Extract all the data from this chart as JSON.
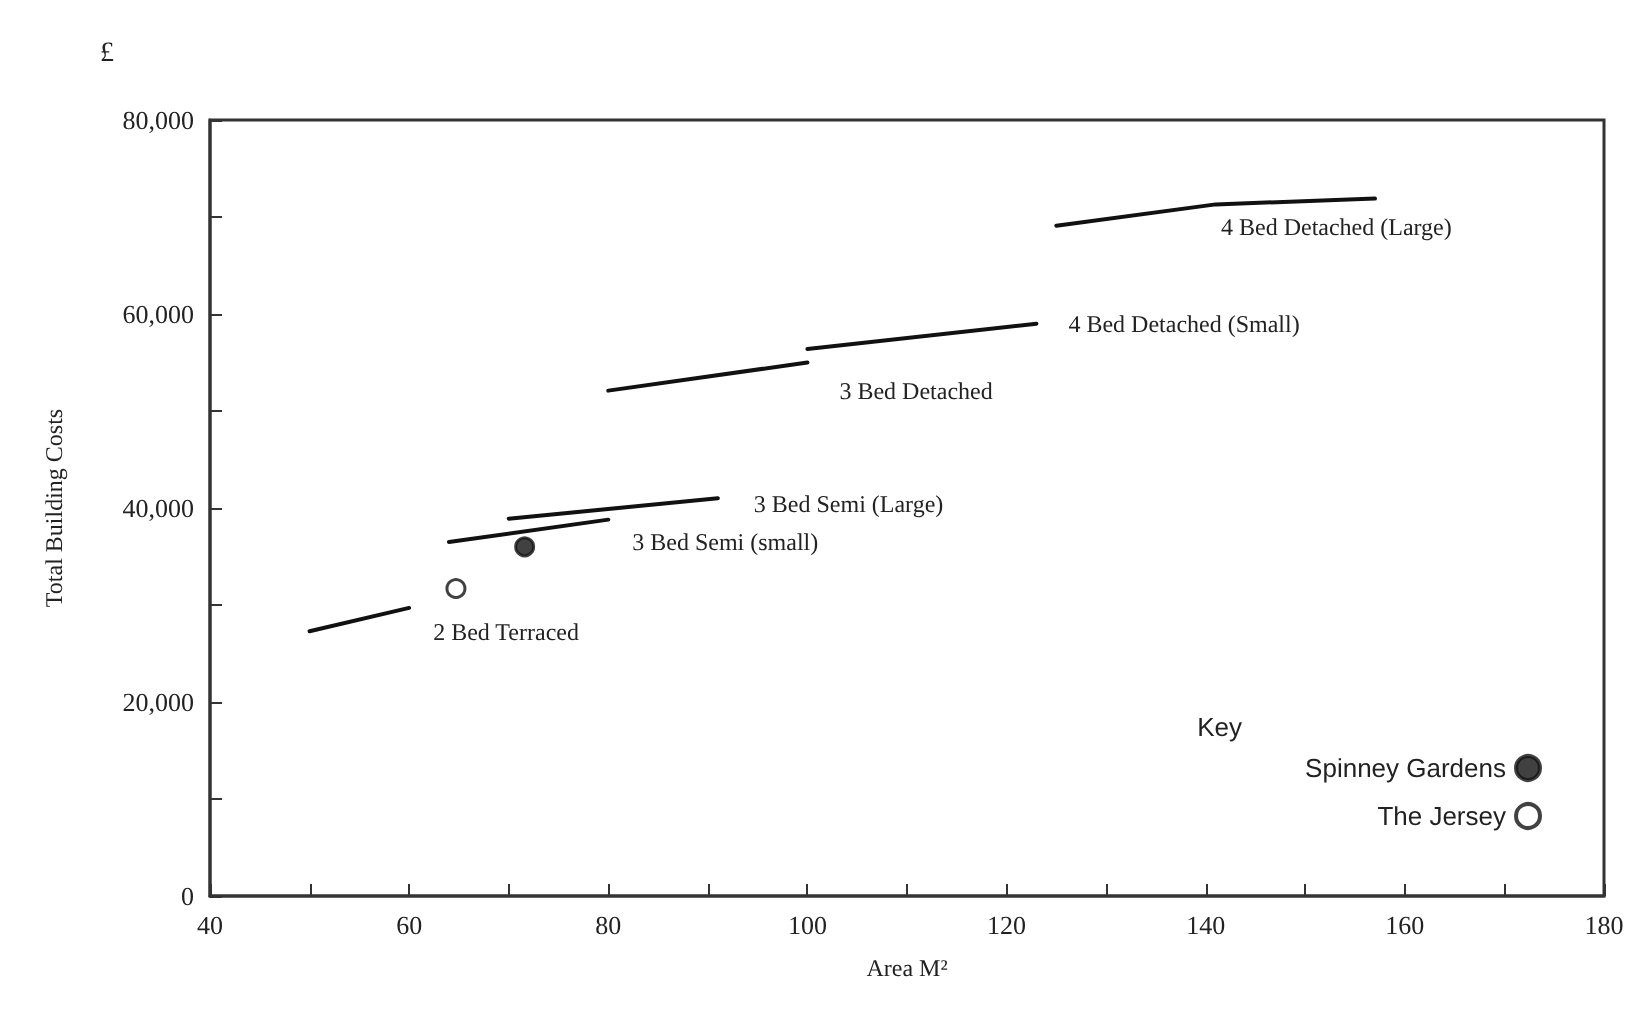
{
  "chart_data": {
    "type": "line",
    "xlabel": "Area M²",
    "ylabel": "Total Building Costs",
    "legend_title": "Key",
    "annotations": [
      "£"
    ],
    "xlim": [
      40,
      180
    ],
    "xticks": [
      40,
      {
        "value": 50,
        "label": null
      },
      60,
      {
        "value": 70,
        "label": null
      },
      80,
      {
        "value": 90,
        "label": null
      },
      100,
      {
        "value": 110,
        "label": null
      },
      120,
      {
        "value": 130,
        "label": null
      },
      140,
      {
        "value": 150,
        "label": null
      },
      160,
      {
        "value": 170,
        "label": null
      },
      180
    ],
    "ylim": [
      0,
      80000
    ],
    "yticks": [
      0,
      {
        "value": 10000,
        "label": null
      },
      {
        "value": 20000,
        "label": "20,000"
      },
      {
        "value": 30000,
        "label": null
      },
      {
        "value": 40000,
        "label": "40,000"
      },
      {
        "value": 50000,
        "label": null
      },
      {
        "value": 60000,
        "label": "60,000"
      },
      {
        "value": 70000,
        "label": null
      },
      {
        "value": 80000,
        "label": "80,000"
      }
    ],
    "grid": false,
    "legend": "bottom right",
    "marker": "none",
    "line_style": "solid",
    "series": [
      {
        "name": "2 Bed Terraced",
        "color": "#111111",
        "x": [
          50,
          60
        ],
        "values": [
          27300,
          29700
        ]
      },
      {
        "name": "3 Bed Semi (small)",
        "color": "#111111",
        "x": [
          64,
          80
        ],
        "values": [
          36500,
          38800
        ]
      },
      {
        "name": "3 Bed Semi (Large)",
        "color": "#111111",
        "x": [
          70,
          91
        ],
        "values": [
          38900,
          41000
        ]
      },
      {
        "name": "3 Bed Detached",
        "color": "#111111",
        "x": [
          80,
          100
        ],
        "values": [
          52100,
          55000
        ]
      },
      {
        "name": "4 Bed Detached (Small)",
        "color": "#111111",
        "x": [
          100,
          123
        ],
        "values": [
          56400,
          59000
        ]
      },
      {
        "name": "4 Bed Detached (Large)",
        "color": "#111111",
        "x": [
          125,
          141,
          157
        ],
        "values": [
          69100,
          71300,
          71900
        ]
      },
      {
        "name": "Spinney Gardens",
        "type": "scatter",
        "marker": "circle",
        "color": "#111111",
        "x": [
          71.6
        ],
        "values": [
          36000
        ]
      },
      {
        "name": "The Jersey",
        "type": "scatter",
        "marker": "circle",
        "color": "#ffffff",
        "x": [
          64.7
        ],
        "values": [
          31700
        ]
      }
    ]
  }
}
